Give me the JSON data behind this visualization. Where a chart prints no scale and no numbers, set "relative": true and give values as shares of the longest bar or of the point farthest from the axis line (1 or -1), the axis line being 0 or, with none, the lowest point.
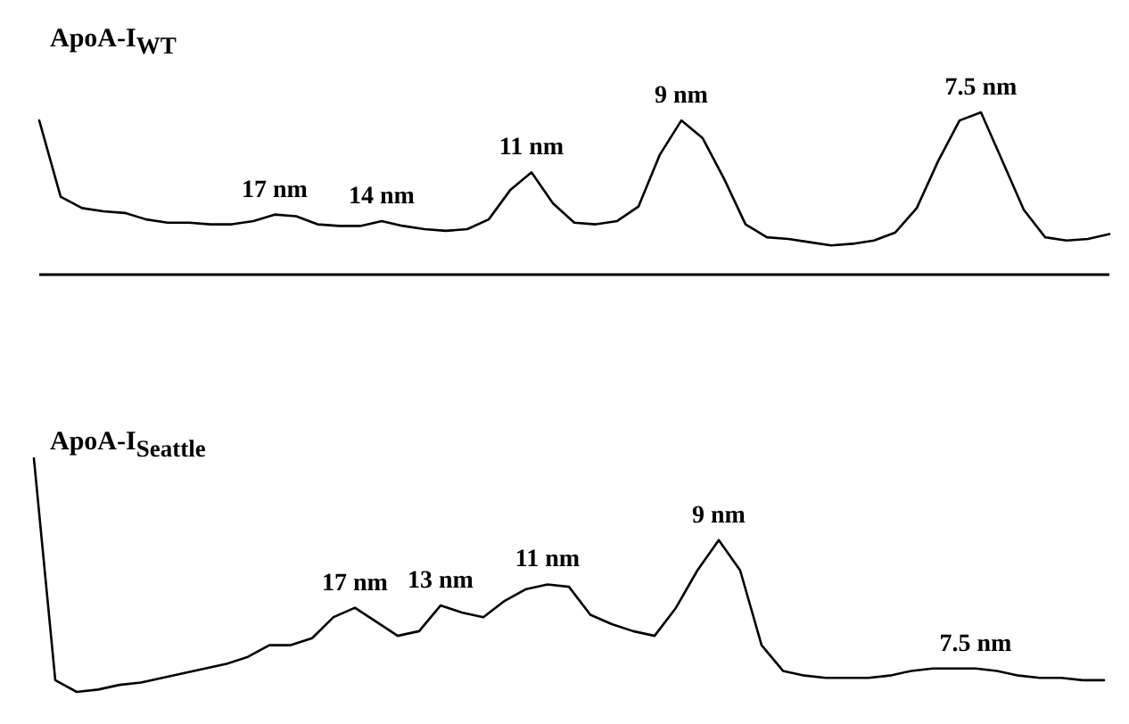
{
  "chart_data": [
    {
      "type": "line",
      "title": "ApoA-I$_{WT}$",
      "relative": true,
      "categories": [
        null,
        null,
        null,
        null,
        null,
        null,
        null,
        null,
        null,
        null,
        null,
        null,
        null,
        null,
        null,
        null,
        null,
        null,
        null,
        null,
        null,
        null,
        null,
        null,
        null,
        null,
        null,
        null,
        null,
        null,
        null,
        null,
        null,
        null,
        null,
        null,
        null,
        null,
        null,
        null,
        null,
        null,
        null,
        null,
        null,
        null,
        null,
        null,
        null,
        null,
        null
      ],
      "series": [
        {
          "color": "#000000",
          "values": [
            0.95,
            0.48,
            0.41,
            0.39,
            0.38,
            0.34,
            0.32,
            0.32,
            0.31,
            0.31,
            0.33,
            0.37,
            0.36,
            0.31,
            0.3,
            0.3,
            0.33,
            0.3,
            0.28,
            0.27,
            0.28,
            0.34,
            0.52,
            0.63,
            0.44,
            0.32,
            0.31,
            0.33,
            0.42,
            0.74,
            0.95,
            0.84,
            0.59,
            0.31,
            0.23,
            0.22,
            0.2,
            0.18,
            0.19,
            0.21,
            0.26,
            0.41,
            0.7,
            0.95,
            1,
            0.7,
            0.4,
            0.23,
            0.21,
            0.22,
            0.25
          ]
        }
      ],
      "annotations": [
        {
          "text": "17 nm",
          "y": 0.37
        },
        {
          "text": "14 nm",
          "y": 0.33
        },
        {
          "text": "11 nm",
          "y": 0.63
        },
        {
          "text": "9 nm",
          "y": 0.95
        },
        {
          "text": "7.5 nm",
          "y": 1
        }
      ]
    },
    {
      "type": "line",
      "title": "ApoA-I$_{Seattle}$",
      "relative": true,
      "categories": [
        null,
        null,
        null,
        null,
        null,
        null,
        null,
        null,
        null,
        null,
        null,
        null,
        null,
        null,
        null,
        null,
        null,
        null,
        null,
        null,
        null,
        null,
        null,
        null,
        null,
        null,
        null,
        null,
        null,
        null,
        null,
        null,
        null,
        null,
        null,
        null,
        null,
        null,
        null,
        null,
        null,
        null,
        null,
        null,
        null,
        null,
        null,
        null,
        null,
        null,
        null
      ],
      "series": [
        {
          "color": "#000000",
          "values": [
            1,
            0.05,
            0,
            0.01,
            0.03,
            0.04,
            0.06,
            0.08,
            0.1,
            0.12,
            0.15,
            0.2,
            0.2,
            0.23,
            0.32,
            0.36,
            0.3,
            0.24,
            0.26,
            0.37,
            0.34,
            0.32,
            0.39,
            0.44,
            0.46,
            0.45,
            0.33,
            0.29,
            0.26,
            0.24,
            0.36,
            0.52,
            0.65,
            0.52,
            0.2,
            0.09,
            0.07,
            0.06,
            0.06,
            0.06,
            0.07,
            0.09,
            0.1,
            0.1,
            0.1,
            0.09,
            0.07,
            0.06,
            0.06,
            0.05,
            0.05
          ]
        }
      ],
      "annotations": [
        {
          "text": "17 nm",
          "y": 0.36
        },
        {
          "text": "13 nm",
          "y": 0.37
        },
        {
          "text": "11 nm",
          "y": 0.46
        },
        {
          "text": "9 nm",
          "y": 0.65
        },
        {
          "text": "7.5 nm",
          "y": 0.1
        }
      ]
    }
  ]
}
